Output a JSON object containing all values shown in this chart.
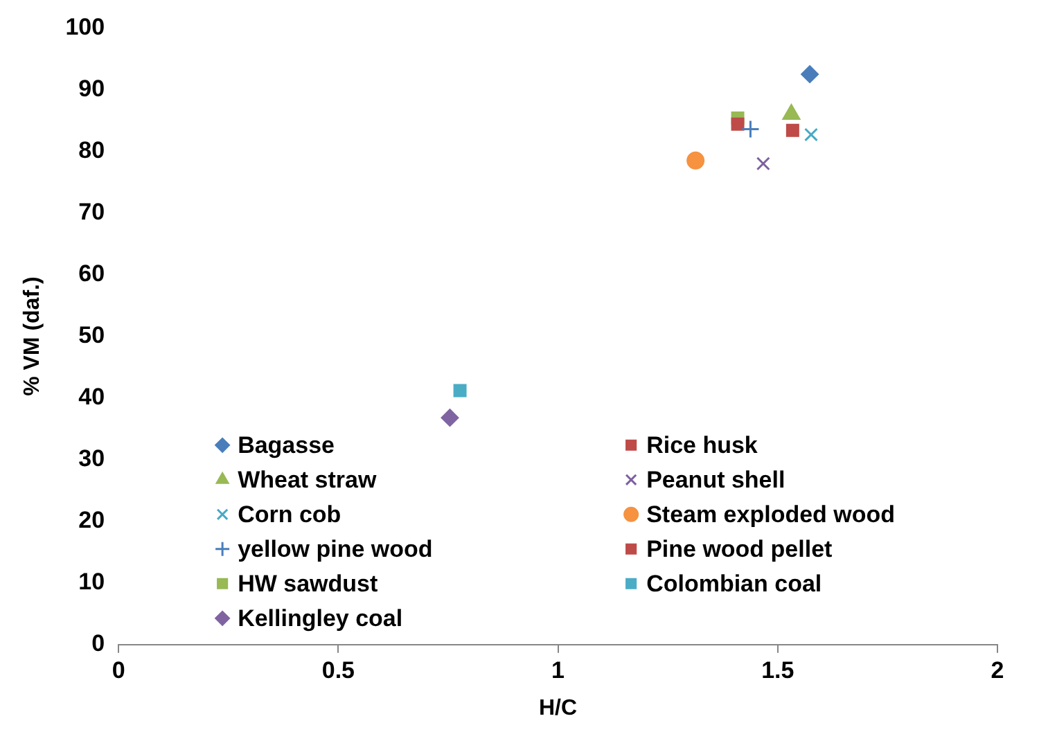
{
  "chart_data": {
    "type": "scatter",
    "xlabel": "H/C",
    "ylabel": "% VM (daf.)",
    "xlim": [
      0,
      2
    ],
    "xticks": [
      0,
      0.5,
      1,
      1.5,
      2
    ],
    "ylim": [
      0,
      100
    ],
    "yticks": [
      0,
      10,
      20,
      30,
      40,
      50,
      60,
      70,
      80,
      90,
      100
    ],
    "grid": false,
    "legend": "bottom left",
    "series": [
      {
        "name": "Bagasse",
        "color": "#4a7ebb",
        "marker": "diamond",
        "x": [
          1.573
        ],
        "values": [
          92.5
        ]
      },
      {
        "name": "Rice husk",
        "color": "#be4b48",
        "marker": "square",
        "x": [
          1.534
        ],
        "values": [
          83.4
        ]
      },
      {
        "name": "Wheat straw",
        "color": "#98b954",
        "marker": "triangle",
        "x": [
          1.531
        ],
        "values": [
          86
        ]
      },
      {
        "name": "Peanut shell",
        "color": "#7d60a0",
        "marker": "cross",
        "x": [
          1.467
        ],
        "values": [
          78
        ]
      },
      {
        "name": "Corn cob",
        "color": "#46aac5",
        "marker": "cross",
        "x": [
          1.576
        ],
        "values": [
          82.7
        ]
      },
      {
        "name": "Steam exploded wood",
        "color": "#f69240",
        "marker": "circle",
        "x": [
          1.313
        ],
        "values": [
          78.5
        ]
      },
      {
        "name": "yellow pine wood",
        "color": "#4a7ebb",
        "marker": "plus",
        "x": [
          1.438
        ],
        "values": [
          83.6
        ]
      },
      {
        "name": "Pine wood pellet",
        "color": "#be4b48",
        "marker": "square",
        "x": [
          1.409
        ],
        "values": [
          84.4
        ]
      },
      {
        "name": "HW sawdust",
        "color": "#98b954",
        "marker": "square",
        "x": [
          1.409
        ],
        "values": [
          85.4
        ]
      },
      {
        "name": "Colombian coal",
        "color": "#4bacc6",
        "marker": "square",
        "x": [
          0.777
        ],
        "values": [
          41.2
        ]
      },
      {
        "name": "Kellingley coal",
        "color": "#8064a2",
        "marker": "diamond",
        "x": [
          0.754
        ],
        "values": [
          36.8
        ]
      }
    ]
  }
}
